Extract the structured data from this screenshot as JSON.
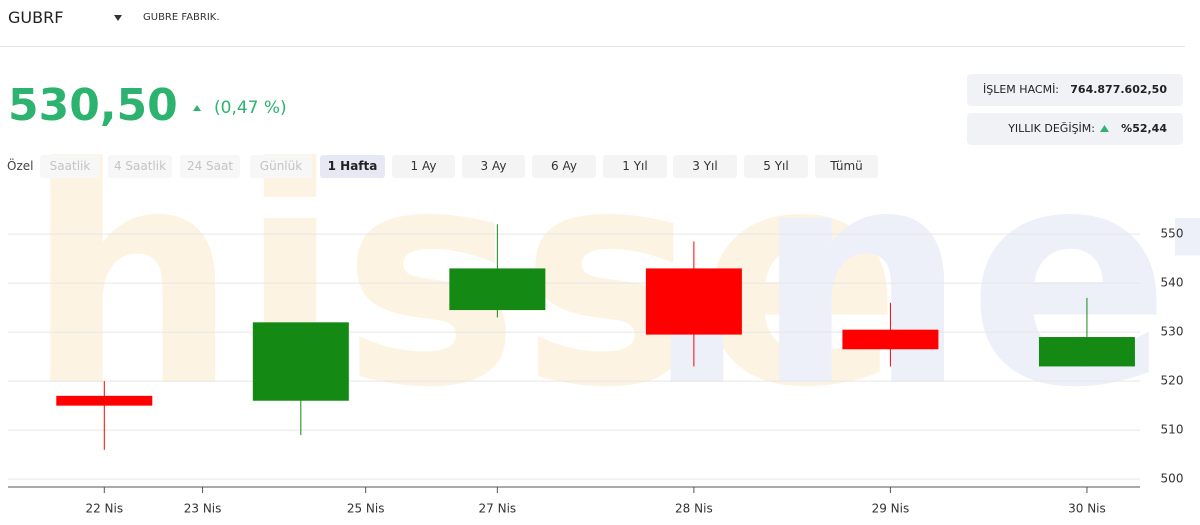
{
  "header": {
    "symbol": "GUBRF",
    "company": "GUBRE FABRIK."
  },
  "quote": {
    "price": "530,50",
    "change": "(0,47 %)"
  },
  "stats": [
    {
      "label": "İŞLEM HACMİ:",
      "value": "764.877.602,50"
    },
    {
      "label": "YILLIK DEĞİŞİM:",
      "value": "%52,44"
    }
  ],
  "range_label": "Özel",
  "tabs": [
    {
      "label": "Saatlik",
      "state": "disabled"
    },
    {
      "label": "4 Saatlik",
      "state": "disabled"
    },
    {
      "label": "24 Saat",
      "state": "disabled"
    },
    {
      "label": "Günlük",
      "state": "disabled"
    },
    {
      "label": "1 Hafta",
      "state": "active"
    },
    {
      "label": "1 Ay",
      "state": "normal"
    },
    {
      "label": "3 Ay",
      "state": "normal"
    },
    {
      "label": "6 Ay",
      "state": "normal"
    },
    {
      "label": "1 Yıl",
      "state": "normal"
    },
    {
      "label": "3 Yıl",
      "state": "normal"
    },
    {
      "label": "5 Yıl",
      "state": "normal"
    },
    {
      "label": "Tümü",
      "state": "normal"
    }
  ],
  "watermark": [
    "hisse",
    ".net"
  ],
  "chart_data": {
    "type": "candlestick",
    "x": [
      0,
      1,
      2,
      3,
      4,
      5
    ],
    "open": [
      517,
      516,
      534.5,
      543,
      530.5,
      523
    ],
    "high": [
      520,
      532,
      552,
      548.5,
      536,
      537
    ],
    "low": [
      506,
      509,
      533,
      523,
      523,
      523
    ],
    "close": [
      515,
      532,
      543,
      529.5,
      526.5,
      529
    ],
    "up_color": "#148a14",
    "down_color": "#ff0000",
    "xlim": [
      -0.49,
      5.27
    ],
    "xticks": [
      {
        "value": 0,
        "label": "22 Nis"
      },
      {
        "value": 0.5,
        "label": "23 Nis"
      },
      {
        "value": 1.33,
        "label": "25 Nis"
      },
      {
        "value": 2,
        "label": "27 Nis"
      },
      {
        "value": 3,
        "label": "28 Nis"
      },
      {
        "value": 4,
        "label": "29 Nis"
      },
      {
        "value": 5,
        "label": "30 Nis"
      }
    ],
    "ylim": [
      498.4,
      559
    ],
    "yticks": [
      500,
      510,
      520,
      530,
      540,
      550
    ],
    "grid": true
  }
}
